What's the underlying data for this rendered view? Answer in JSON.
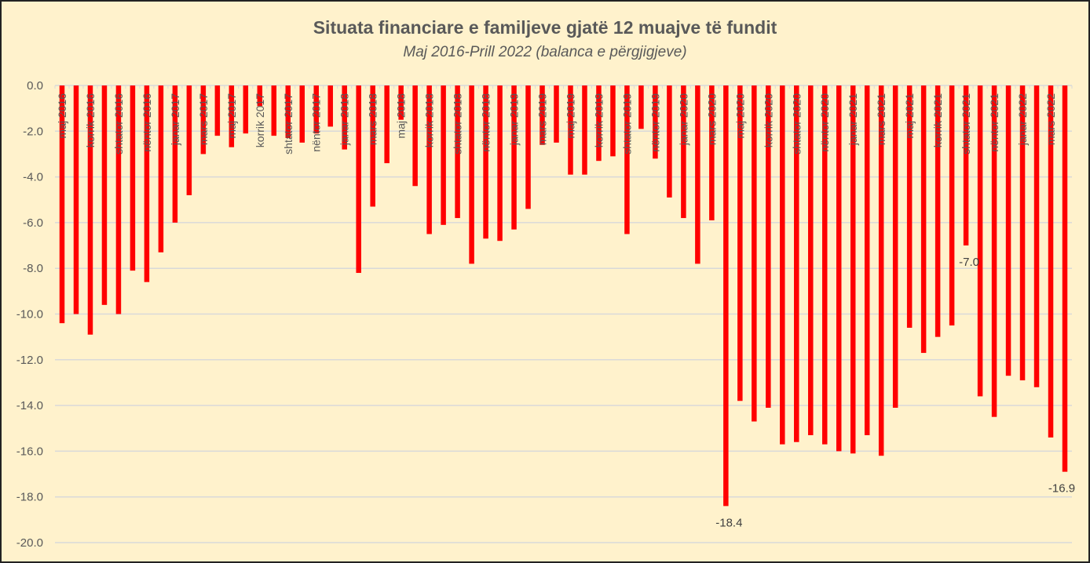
{
  "chart_data": {
    "type": "bar",
    "title": "Situata financiare e familjeve gjatë 12 muajve të fundit",
    "subtitle": "Maj 2016-Prill 2022 (balanca e përgjigjeve)",
    "xlabel": "",
    "ylabel": "",
    "ylim": [
      -20,
      0
    ],
    "yticks": [
      "0.0",
      "-2.0",
      "-4.0",
      "-6.0",
      "-8.0",
      "-10.0",
      "-12.0",
      "-14.0",
      "-16.0",
      "-18.0",
      "-20.0"
    ],
    "ytick_values": [
      0,
      -2,
      -4,
      -6,
      -8,
      -10,
      -12,
      -14,
      -16,
      -18,
      -20
    ],
    "grid": true,
    "bar_color": "#FF0000",
    "categories": [
      "maj 2016",
      "qershor 2016",
      "korrik 2016",
      "gusht 2016",
      "shtator 2016",
      "tetor 2016",
      "nëntor 2016",
      "dhjetor 2016",
      "janar 2017",
      "shkurt 2017",
      "mars 2017",
      "prill 2017",
      "maj 2017",
      "qershor 2017",
      "korrik 2017",
      "gusht 2017",
      "shtator 2017",
      "tetor 2017",
      "nëntor 2017",
      "dhjetor 2017",
      "janar 2018",
      "shkurt 2018",
      "mars 2018",
      "prill 2018",
      "maj 2018",
      "qershor 2018",
      "korrik 2018",
      "gusht 2018",
      "shtator 2018",
      "tetor 2018",
      "nëntor 2018",
      "dhjetor 2018",
      "janar 2019",
      "shkurt 2019",
      "mars 2019",
      "prill 2019",
      "maj 2019",
      "qershor 2019",
      "korrik 2019",
      "gusht 2019",
      "shtator 2019",
      "tetor 2019",
      "nëntor 2019",
      "dhjetor 2019",
      "janar 2020",
      "shkurt 2020",
      "mars 2020",
      "prill 2020",
      "maj 2020",
      "qershor 2020",
      "korrik 2020",
      "gusht 2020",
      "shtator 2020",
      "tetor 2020",
      "nëntor 2020",
      "dhjetor 2020",
      "janar 2021",
      "shkurt 2021",
      "mars 2021",
      "prill 2021",
      "maj 2021",
      "qershor 2021",
      "korrik 2021",
      "gusht 2021",
      "shtator 2021",
      "tetor 2021",
      "nëntor 2021",
      "dhjetor 2021",
      "janar 2022",
      "shkurt 2022",
      "mars 2022",
      "prill 2022"
    ],
    "tick_labels_every": 2,
    "values": [
      -10.4,
      -10.0,
      -10.9,
      -9.6,
      -10.0,
      -8.1,
      -8.6,
      -7.3,
      -6.0,
      -4.8,
      -3.0,
      -2.2,
      -2.7,
      -2.1,
      -0.9,
      -2.2,
      -2.3,
      -2.5,
      -2.1,
      -1.8,
      -2.8,
      -8.2,
      -5.3,
      -3.4,
      -1.5,
      -4.4,
      -6.5,
      -6.1,
      -5.8,
      -7.8,
      -6.7,
      -6.8,
      -6.3,
      -5.4,
      -2.6,
      -2.5,
      -3.9,
      -3.9,
      -3.3,
      -3.1,
      -6.5,
      -1.9,
      -3.2,
      -4.9,
      -5.8,
      -7.8,
      -5.9,
      -18.4,
      -13.8,
      -14.7,
      -14.1,
      -15.7,
      -15.6,
      -15.3,
      -15.7,
      -16.0,
      -16.1,
      -15.3,
      -16.2,
      -14.1,
      -10.6,
      -11.7,
      -11.0,
      -10.5,
      -7.0,
      -13.6,
      -14.5,
      -12.7,
      -12.9,
      -13.2,
      -15.4,
      -16.9
    ],
    "data_labels": [
      {
        "category": "prill 2020",
        "text": "-18.4"
      },
      {
        "category": "shtator 2021",
        "text": "-7.0"
      },
      {
        "category": "prill 2022",
        "text": "-16.9"
      }
    ]
  }
}
